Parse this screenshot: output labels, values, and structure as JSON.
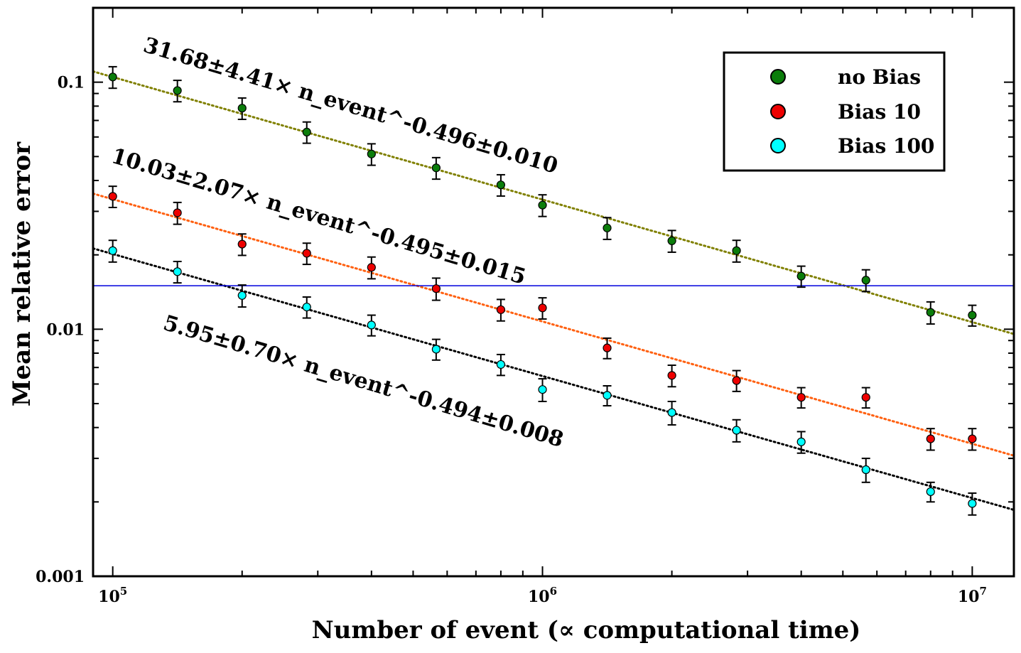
{
  "chart_data": {
    "type": "scatter",
    "xscale": "log",
    "yscale": "log",
    "xlim": [
      90000,
      12500000
    ],
    "ylim": [
      0.001,
      0.2
    ],
    "xlabel": "Number of event (∝ computational time)",
    "ylabel": "Mean relative error",
    "xticks": [
      {
        "value": 100000,
        "base": "10",
        "exp": "5"
      },
      {
        "value": 1000000,
        "base": "10",
        "exp": "6"
      },
      {
        "value": 10000000,
        "base": "10",
        "exp": "7"
      }
    ],
    "yticks": [
      {
        "value": 0.1,
        "label": "0.1"
      },
      {
        "value": 0.01,
        "label": "0.01"
      },
      {
        "value": 0.001,
        "label": "0.001"
      }
    ],
    "x": [
      100000,
      141400,
      200000,
      282800,
      400000,
      565700,
      800000,
      1000000,
      1414000,
      2000000,
      2828000,
      4000000,
      5657000,
      8000000,
      10000000
    ],
    "series": [
      {
        "name": "no Bias",
        "color": "#0b7d0b",
        "values": [
          0.105,
          0.0925,
          0.0785,
          0.0628,
          0.0512,
          0.045,
          0.0384,
          0.0318,
          0.0257,
          0.0228,
          0.0208,
          0.0164,
          0.0158,
          0.0117,
          0.0114
        ],
        "errors": [
          0.0105,
          0.0092,
          0.0078,
          0.0062,
          0.0051,
          0.0045,
          0.0038,
          0.0032,
          0.0026,
          0.0023,
          0.0021,
          0.0016,
          0.0016,
          0.0012,
          0.0011
        ]
      },
      {
        "name": "Bias 10",
        "color": "#ee0000",
        "values": [
          0.0345,
          0.0296,
          0.0221,
          0.0203,
          0.0178,
          0.0146,
          0.012,
          0.0122,
          0.0084,
          0.0065,
          0.0062,
          0.0053,
          0.0053,
          0.0036,
          0.0036
        ],
        "errors": [
          0.0034,
          0.003,
          0.0022,
          0.002,
          0.0018,
          0.0015,
          0.0012,
          0.0012,
          0.0008,
          0.00065,
          0.0006,
          0.0005,
          0.0005,
          0.00036,
          0.00036
        ]
      },
      {
        "name": "Bias 100",
        "color": "#00ffff",
        "values": [
          0.0208,
          0.0171,
          0.0137,
          0.0123,
          0.0104,
          0.0083,
          0.0072,
          0.0057,
          0.0054,
          0.0046,
          0.0039,
          0.0035,
          0.0027,
          0.0022,
          0.00197
        ],
        "errors": [
          0.0021,
          0.0017,
          0.0014,
          0.0012,
          0.001,
          0.0008,
          0.0007,
          0.0006,
          0.0005,
          0.0005,
          0.0004,
          0.00035,
          0.0003,
          0.0002,
          0.0002
        ]
      }
    ],
    "fits": [
      {
        "series": "no Bias",
        "color": "#808000",
        "coef": 31.68,
        "exp": -0.496,
        "label": "31.68±4.41× n_event^-0.496±0.010"
      },
      {
        "series": "Bias 10",
        "color": "#ff6010",
        "coef": 10.03,
        "exp": -0.495,
        "label": "10.03±2.07× n_event^-0.495±0.015"
      },
      {
        "series": "Bias 100",
        "color": "#000000",
        "coef": 5.95,
        "exp": -0.494,
        "label": "5.95±0.70× n_event^-0.494±0.008"
      }
    ],
    "hline": {
      "value": 0.015,
      "color": "#0000dd"
    },
    "legend": {
      "position": "top-right",
      "entries": [
        "no Bias",
        "Bias 10",
        "Bias 100"
      ]
    },
    "grid": false
  }
}
